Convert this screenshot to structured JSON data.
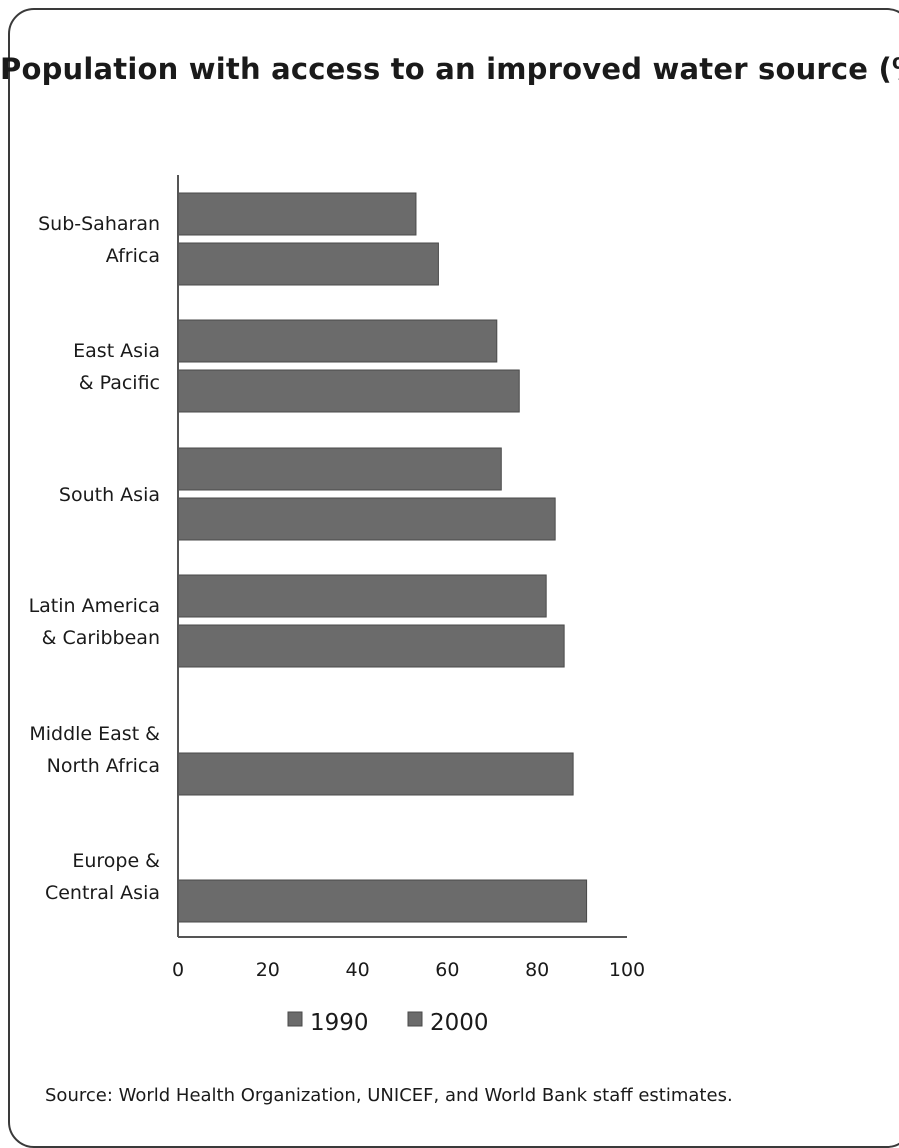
{
  "chart_data": {
    "type": "bar",
    "orientation": "horizontal",
    "title": "Population with access to an improved water source (%)",
    "categories": [
      [
        "Sub-Saharan",
        "Africa"
      ],
      [
        "East Asia",
        "& Pacific"
      ],
      [
        "South Asia"
      ],
      [
        "Latin America",
        "& Caribbean"
      ],
      [
        "Middle East &",
        "North Africa"
      ],
      [
        "Europe &",
        "Central Asia"
      ]
    ],
    "series": [
      {
        "name": "1990",
        "values": [
          53,
          71,
          72,
          82,
          null,
          null
        ]
      },
      {
        "name": "2000",
        "values": [
          58,
          76,
          84,
          86,
          88,
          91
        ]
      }
    ],
    "xlim": [
      0,
      100
    ],
    "xticks": [
      "0",
      "20",
      "40",
      "60",
      "80",
      "100"
    ],
    "grid": false,
    "legend_position": "bottom",
    "colors": {
      "1990": "#6b6b6b",
      "2000": "#6b6b6b",
      "axis": "#555555"
    },
    "source": "Source: World Health Organization, UNICEF, and World Bank staff estimates."
  }
}
